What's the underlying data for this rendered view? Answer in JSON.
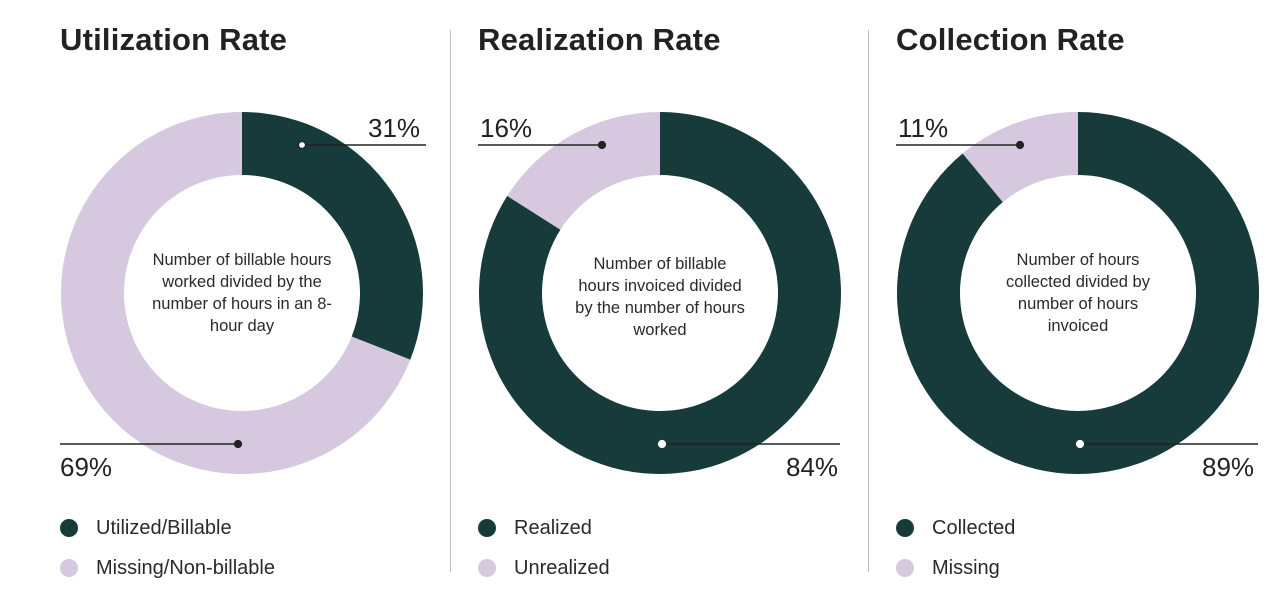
{
  "colors": {
    "dark": "#173a3a",
    "light": "#d5c8df",
    "line": "#222222",
    "divider": "#bdbdbd"
  },
  "chart_data": [
    {
      "type": "pie",
      "title": "Utilization Rate",
      "center_text": "Number of billable hours worked divided by the number of hours in an 8-hour day",
      "slices": [
        {
          "label": "Utilized/Billable",
          "value": 31,
          "display": "31%",
          "color": "#173a3a"
        },
        {
          "label": "Missing/Non-billable",
          "value": 69,
          "display": "69%",
          "color": "#d5c8df"
        }
      ]
    },
    {
      "type": "pie",
      "title": "Realization Rate",
      "center_text": "Number of billable hours invoiced divided by the number of hours worked",
      "slices": [
        {
          "label": "Realized",
          "value": 84,
          "display": "84%",
          "color": "#173a3a"
        },
        {
          "label": "Unrealized",
          "value": 16,
          "display": "16%",
          "color": "#d5c8df"
        }
      ]
    },
    {
      "type": "pie",
      "title": "Collection Rate",
      "center_text": "Number of hours collected divided by number of hours invoiced",
      "slices": [
        {
          "label": "Collected",
          "value": 89,
          "display": "89%",
          "color": "#173a3a"
        },
        {
          "label": "Missing",
          "value": 11,
          "display": "11%",
          "color": "#d5c8df"
        }
      ]
    }
  ]
}
